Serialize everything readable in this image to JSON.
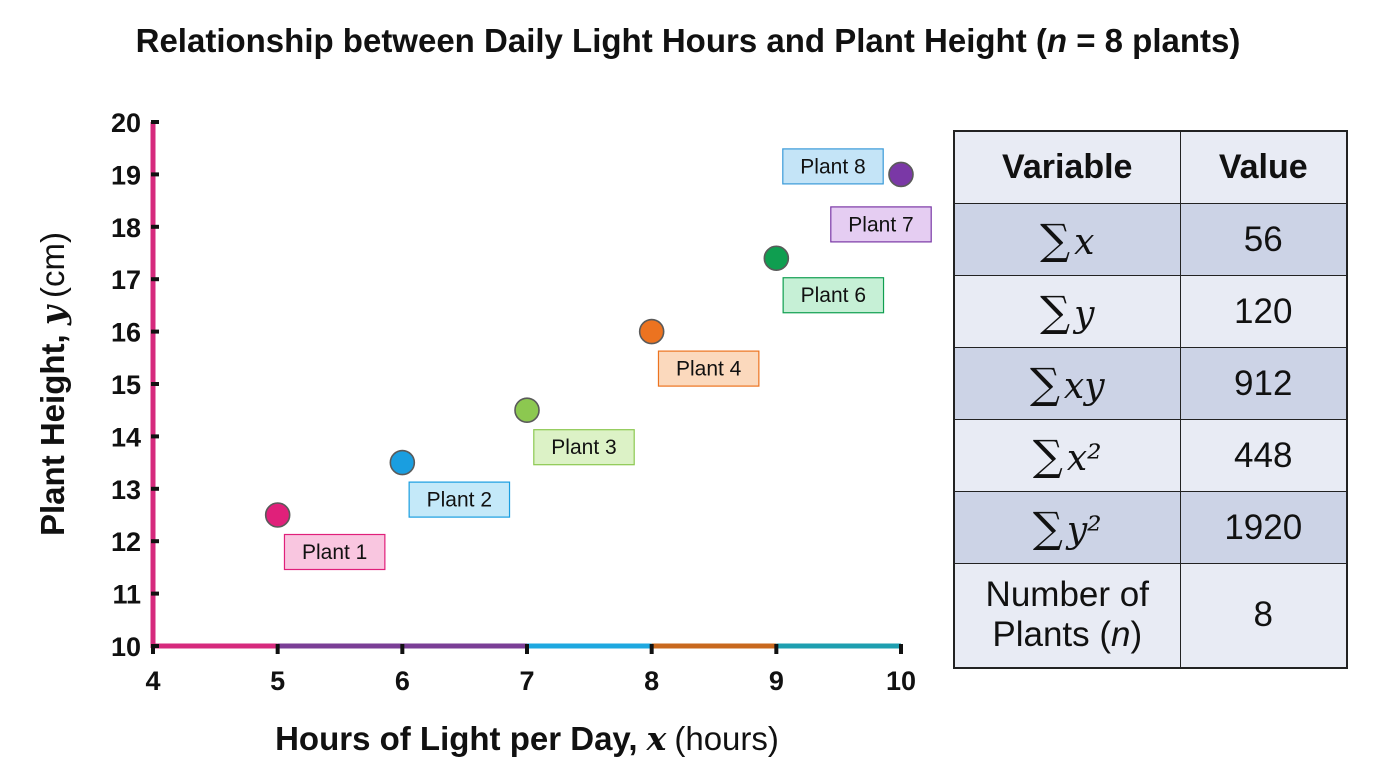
{
  "chart_data": {
    "type": "scatter",
    "title": "Relationship between Daily Light Hours and Plant Height (n = 8 plants)",
    "title_parts": {
      "pre": "Relationship between Daily Light Hours and Plant Height (",
      "n": "n",
      "post": " = 8 plants)"
    },
    "xlabel": "Hours of Light per Day, x (hours)",
    "xlabel_parts": {
      "pre": "Hours of Light per Day, ",
      "var": "x",
      "unit": "(hours)"
    },
    "ylabel": "Plant Height, y (cm)",
    "ylabel_parts": {
      "pre": "Plant Height, ",
      "var": "y",
      "unit": "(cm)"
    },
    "xlim": [
      4,
      10
    ],
    "ylim": [
      10,
      20
    ],
    "xticks": [
      "4",
      "5",
      "6",
      "7",
      "8",
      "9",
      "10"
    ],
    "yticks": [
      "10",
      "11",
      "12",
      "13",
      "14",
      "15",
      "16",
      "17",
      "18",
      "19",
      "20"
    ],
    "grid": false,
    "points": [
      {
        "label": "Plant 1",
        "x": 5,
        "y": 12.5,
        "color": "#e0207a",
        "label_bg": "#f9c6e0",
        "label_border": "#e0207a"
      },
      {
        "label": "Plant 2",
        "x": 6,
        "y": 13.5,
        "color": "#1a9ee0",
        "label_bg": "#c4e9f9",
        "label_border": "#1a9ee0"
      },
      {
        "label": "Plant 3",
        "x": 7,
        "y": 14.5,
        "color": "#8cc850",
        "label_bg": "#dcf2c6",
        "label_border": "#8cc850"
      },
      {
        "label": "Plant 4",
        "x": 8,
        "y": 16,
        "color": "#ec7320",
        "label_bg": "#fbd9bd",
        "label_border": "#ec7320"
      },
      {
        "label": "Plant 6",
        "x": 9,
        "y": 17.4,
        "color": "#0f9e50",
        "label_bg": "#c6f0d6",
        "label_border": "#0f9e50"
      },
      {
        "label": "Plant 7",
        "x": 10,
        "y": 19,
        "color": "#7a38a6",
        "label_bg": "#e5cdf2",
        "label_border": "#7a38a6"
      }
    ],
    "extra_labels": [
      {
        "label": "Plant 8",
        "label_bg": "#c4e4f7",
        "label_border": "#3a9ad8"
      }
    ],
    "axis_colors": {
      "y_axis": "#d62a7d",
      "x_segments": [
        "#d62a7d",
        "#7a3e96",
        "#7a3e96",
        "#1ea8e0",
        "#c8681e",
        "#1e9fb0"
      ]
    }
  },
  "table": {
    "headers": [
      "Variable",
      "Value"
    ],
    "rows": [
      {
        "symbol": "∑",
        "var": "x",
        "value": "56"
      },
      {
        "symbol": "∑",
        "var": "y",
        "value": "120"
      },
      {
        "symbol": "∑",
        "var": "xy",
        "value": "912"
      },
      {
        "symbol": "∑",
        "var": "x²",
        "value": "448"
      },
      {
        "symbol": "∑",
        "var": "y²",
        "value": "1920"
      }
    ],
    "last_row": {
      "label_line1": "Number of",
      "label_line2_pre": "Plants (",
      "label_n": "n",
      "label_line2_post": ")",
      "value": "8"
    }
  }
}
